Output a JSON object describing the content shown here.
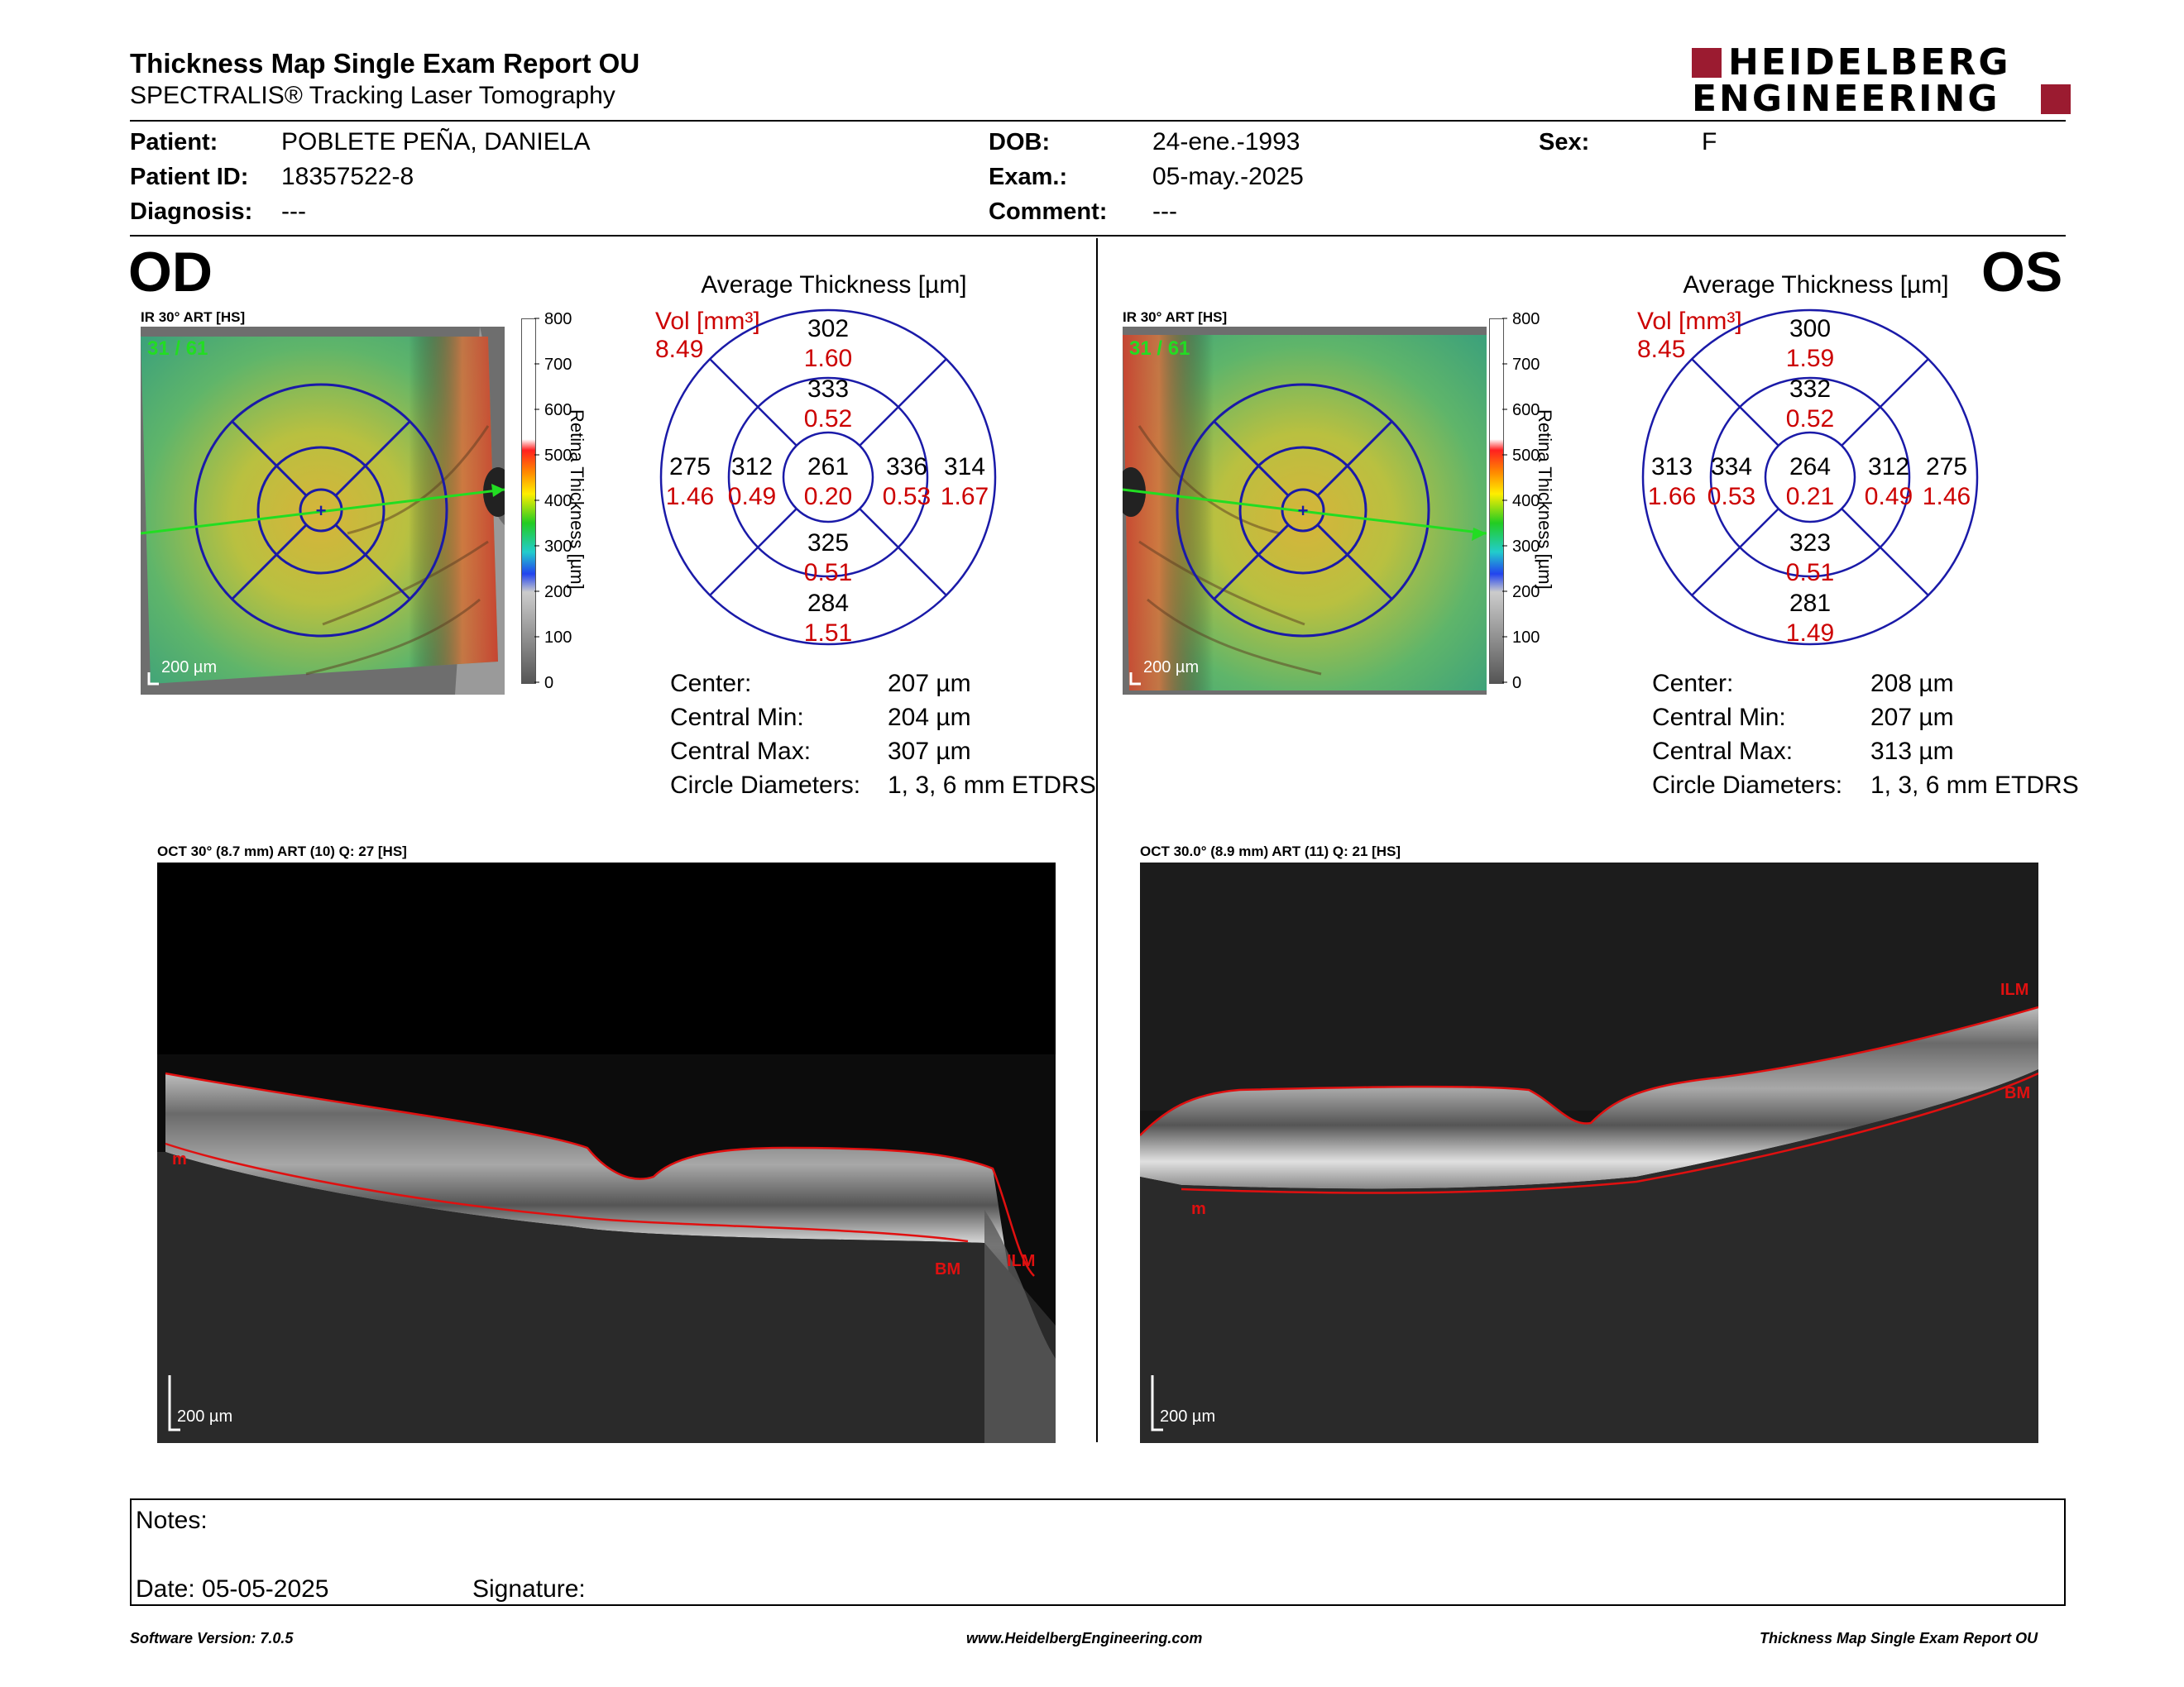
{
  "header": {
    "title": "Thickness Map Single Exam Report OU",
    "subtitle": "SPECTRALIS® Tracking Laser Tomography",
    "logo_line1": "HEIDELBERG",
    "logo_line2": "ENGINEERING"
  },
  "patient": {
    "patient_label": "Patient:",
    "patient_value": "POBLETE PEÑA, DANIELA",
    "id_label": "Patient ID:",
    "id_value": "18357522-8",
    "diagnosis_label": "Diagnosis:",
    "diagnosis_value": "---",
    "dob_label": "DOB:",
    "dob_value": "24-ene.-1993",
    "exam_label": "Exam.:",
    "exam_value": "05-may.-2025",
    "comment_label": "Comment:",
    "comment_value": "---",
    "sex_label": "Sex:",
    "sex_value": "F"
  },
  "scale": {
    "title": "Retina Thickness [µm]",
    "ticks": [
      "800",
      "700",
      "600",
      "500",
      "400",
      "300",
      "200",
      "100",
      "0"
    ]
  },
  "od": {
    "eye": "OD",
    "ir_label": "IR 30° ART [HS]",
    "frame": "31 / 61",
    "scalebar": "200 µm",
    "avg_title": "Average Thickness [µm]",
    "vol_label": "Vol [mm³]",
    "vol_value": "8.49",
    "grid": {
      "outer_top": [
        "302",
        "1.60"
      ],
      "inner_top": [
        "333",
        "0.52"
      ],
      "outer_left": [
        "275",
        "1.46"
      ],
      "inner_left": [
        "312",
        "0.49"
      ],
      "center": [
        "261",
        "0.20"
      ],
      "inner_right": [
        "336",
        "0.53"
      ],
      "outer_right": [
        "314",
        "1.67"
      ],
      "inner_bottom": [
        "325",
        "0.51"
      ],
      "outer_bottom": [
        "284",
        "1.51"
      ]
    },
    "stats": {
      "center_label": "Center:",
      "center_value": "207 µm",
      "min_label": "Central Min:",
      "min_value": "204 µm",
      "max_label": "Central Max:",
      "max_value": "307 µm",
      "diam_label": "Circle Diameters:",
      "diam_value": "1, 3, 6 mm ETDRS"
    },
    "oct_label": "OCT 30° (8.7 mm) ART (10) Q: 27 [HS]",
    "oct_scalebar": "200 µm",
    "seg_labels": [
      "m",
      "BM",
      "ILM"
    ]
  },
  "os": {
    "eye": "OS",
    "ir_label": "IR 30° ART [HS]",
    "frame": "31 / 61",
    "scalebar": "200 µm",
    "avg_title": "Average Thickness [µm]",
    "vol_label": "Vol [mm³]",
    "vol_value": "8.45",
    "grid": {
      "outer_top": [
        "300",
        "1.59"
      ],
      "inner_top": [
        "332",
        "0.52"
      ],
      "outer_left": [
        "313",
        "1.66"
      ],
      "inner_left": [
        "334",
        "0.53"
      ],
      "center": [
        "264",
        "0.21"
      ],
      "inner_right": [
        "312",
        "0.49"
      ],
      "outer_right": [
        "275",
        "1.46"
      ],
      "inner_bottom": [
        "323",
        "0.51"
      ],
      "outer_bottom": [
        "281",
        "1.49"
      ]
    },
    "stats": {
      "center_label": "Center:",
      "center_value": "208 µm",
      "min_label": "Central Min:",
      "min_value": "207 µm",
      "max_label": "Central Max:",
      "max_value": "313 µm",
      "diam_label": "Circle Diameters:",
      "diam_value": "1, 3, 6 mm ETDRS"
    },
    "oct_label": "OCT 30.0° (8.9 mm) ART (11) Q: 21 [HS]",
    "oct_scalebar": "200 µm",
    "seg_labels": [
      "ILM",
      "BM",
      "m"
    ]
  },
  "notes": {
    "notes_label": "Notes:",
    "date_label": "Date: 05-05-2025",
    "signature_label": "Signature:"
  },
  "footer": {
    "left": "Software Version: 7.0.5",
    "center": "www.HeidelbergEngineering.com",
    "right": "Thickness Map Single Exam Report OU"
  },
  "colors": {
    "red": "#cc0000",
    "logo_red": "#9b1b30",
    "grid_blue": "#1a1aa8",
    "scan_green": "#22dd22"
  }
}
